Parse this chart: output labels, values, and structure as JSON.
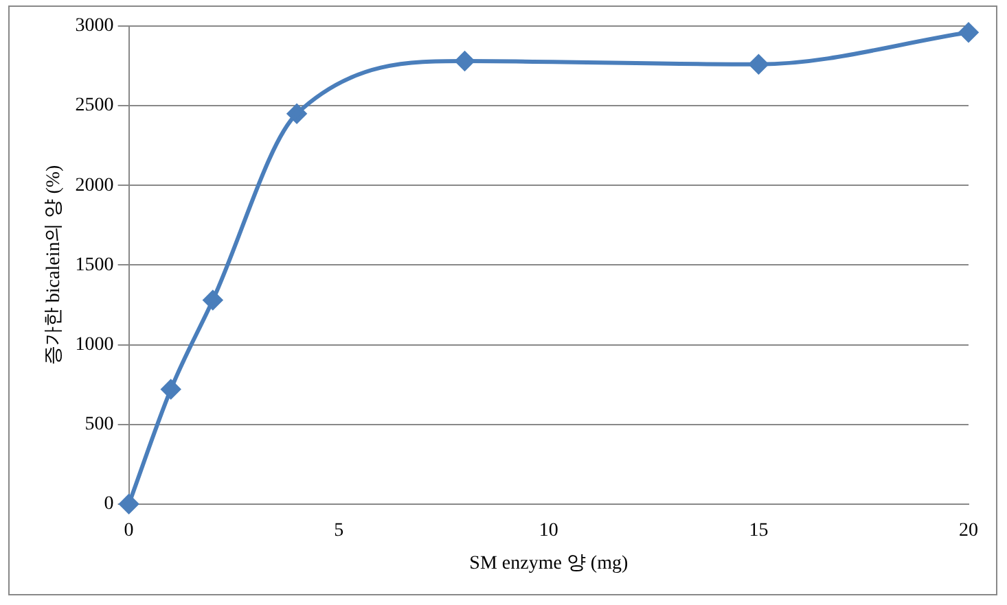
{
  "chart_data": {
    "type": "line",
    "xlabel": "SM enzyme 양 (mg)",
    "ylabel": "증가한 bicalein의 양 (%)",
    "x": [
      0,
      1,
      2,
      4,
      8,
      15,
      20
    ],
    "series": [
      {
        "color": "#4a7ebb",
        "values": [
          0,
          720,
          1280,
          2450,
          2780,
          2760,
          2960
        ]
      }
    ],
    "xlim": [
      0,
      20
    ],
    "xticks": [
      0,
      5,
      10,
      15,
      20
    ],
    "ylim": [
      0,
      3000
    ],
    "yticks": [
      0,
      500,
      1000,
      1500,
      2000,
      2500,
      3000
    ],
    "grid": "y",
    "legend": false,
    "marker": "diamond",
    "line_style": "solid"
  }
}
